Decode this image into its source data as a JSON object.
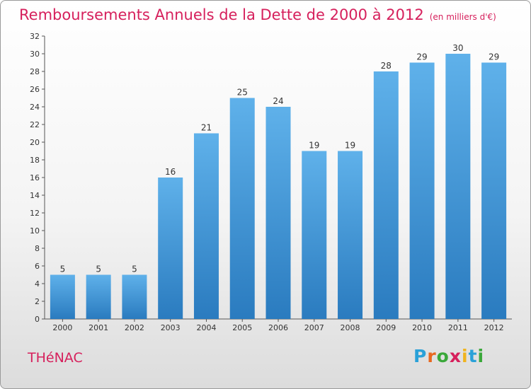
{
  "title": "Remboursements Annuels de la Dette de 2000 à 2012",
  "subtitle": "(en milliers d'€)",
  "commune": "THéNAC",
  "logo": {
    "letters": [
      "P",
      "r",
      "o",
      "x",
      "i",
      "t",
      "i"
    ],
    "colors": [
      "#2aa1d8",
      "#e8681f",
      "#3aa83a",
      "#d6205c",
      "#f0b41e",
      "#2aa1d8",
      "#3aa83a"
    ]
  },
  "colors": {
    "accent": "#d6205c",
    "bar_light": "#5fb1ea",
    "bar_dark": "#2a7bbf"
  },
  "chart_data": {
    "type": "bar",
    "categories": [
      "2000",
      "2001",
      "2002",
      "2003",
      "2004",
      "2005",
      "2006",
      "2007",
      "2008",
      "2009",
      "2010",
      "2011",
      "2012"
    ],
    "values": [
      5,
      5,
      5,
      16,
      21,
      25,
      24,
      19,
      19,
      28,
      29,
      30,
      29
    ],
    "title": "Remboursements Annuels de la Dette de 2000 à 2012",
    "xlabel": "",
    "ylabel": "",
    "ylim": [
      0,
      32
    ],
    "yticks": [
      0,
      2,
      4,
      6,
      8,
      10,
      12,
      14,
      16,
      18,
      20,
      22,
      24,
      26,
      28,
      30,
      32
    ],
    "grid": false,
    "data_labels": true
  }
}
